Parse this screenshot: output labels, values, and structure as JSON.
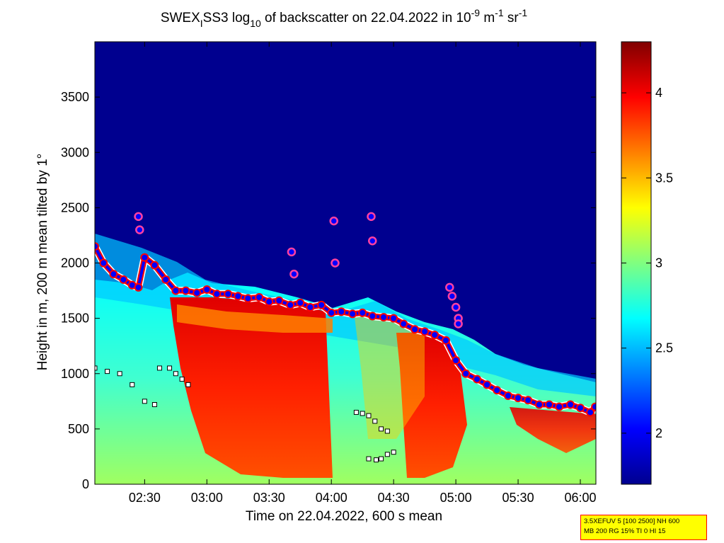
{
  "chart_data": {
    "type": "heatmap",
    "title": {
      "prefix": "SWEX",
      "sub1": "I",
      "mid": "SS3 log",
      "sub2": "10",
      "mid2": " of backscatter on 22.04.2022 in 10",
      "sup1": "-9",
      "mid3": " m",
      "sup2": "-1",
      "mid4": " sr",
      "sup3": "-1"
    },
    "xlabel": "Time on 22.04.2022, 600 s mean",
    "ylabel": "Height in m, 200 m mean tilted by 1°",
    "xlim_hours": [
      2.1,
      6.125
    ],
    "ylim": [
      0,
      4000
    ],
    "xticks": [
      {
        "v": 2.5,
        "label": "02:30"
      },
      {
        "v": 3.0,
        "label": "03:00"
      },
      {
        "v": 3.5,
        "label": "03:30"
      },
      {
        "v": 4.0,
        "label": "04:00"
      },
      {
        "v": 4.5,
        "label": "04:30"
      },
      {
        "v": 5.0,
        "label": "05:00"
      },
      {
        "v": 5.5,
        "label": "05:30"
      },
      {
        "v": 6.0,
        "label": "06:00"
      }
    ],
    "yticks": [
      {
        "v": 0,
        "label": "0"
      },
      {
        "v": 500,
        "label": "500"
      },
      {
        "v": 1000,
        "label": "1000"
      },
      {
        "v": 1500,
        "label": "1500"
      },
      {
        "v": 2000,
        "label": "2000"
      },
      {
        "v": 2500,
        "label": "2500"
      },
      {
        "v": 3000,
        "label": "3000"
      },
      {
        "v": 3500,
        "label": "3500"
      }
    ],
    "colorbar": {
      "clim": [
        1.7,
        4.3
      ],
      "ticks": [
        {
          "v": 2.0,
          "label": "2"
        },
        {
          "v": 2.5,
          "label": "2.5"
        },
        {
          "v": 3.0,
          "label": "3"
        },
        {
          "v": 3.5,
          "label": "3.5"
        },
        {
          "v": 4.0,
          "label": "4"
        }
      ]
    },
    "colors": {
      "background": "#00008f",
      "blue": "#0000ff",
      "cyan": "#00ffff",
      "green": "#80ff80",
      "yellow": "#ffff00",
      "orange": "#ff8000",
      "red": "#ff0000",
      "darkred": "#800000",
      "mlh_marker_fill": "#0000ff",
      "mlh_marker_ring": "#ff0000",
      "square_marker": "#ffffff"
    },
    "series": [
      {
        "kind": "mixing-layer-top",
        "x": [
          2.1,
          2.17,
          2.25,
          2.33,
          2.4,
          2.45,
          2.5,
          2.58,
          2.67,
          2.75,
          2.83,
          2.92,
          3.0,
          3.08,
          3.17,
          3.25,
          3.33,
          3.42,
          3.5,
          3.58,
          3.67,
          3.75,
          3.83,
          3.92,
          4.0,
          4.08,
          4.17,
          4.25,
          4.33,
          4.42,
          4.5,
          4.58,
          4.67,
          4.75,
          4.83,
          4.92,
          5.0,
          5.08,
          5.17,
          5.25,
          5.33,
          5.42,
          5.5,
          5.58,
          5.67,
          5.75,
          5.83,
          5.92,
          6.0,
          6.08,
          6.12
        ],
        "y": [
          2150,
          2000,
          1900,
          1850,
          1800,
          1780,
          2050,
          1980,
          1850,
          1750,
          1750,
          1730,
          1760,
          1720,
          1720,
          1700,
          1680,
          1690,
          1650,
          1660,
          1620,
          1640,
          1600,
          1620,
          1550,
          1560,
          1540,
          1550,
          1520,
          1510,
          1500,
          1450,
          1400,
          1380,
          1350,
          1300,
          1120,
          1000,
          950,
          900,
          850,
          800,
          780,
          760,
          720,
          720,
          700,
          720,
          690,
          650,
          700
        ]
      },
      {
        "kind": "lower-layer",
        "x": [
          2.1,
          2.2,
          2.3,
          2.4,
          2.5,
          2.58,
          2.62,
          2.7,
          2.75,
          2.8,
          2.85
        ],
        "y": [
          1050,
          1020,
          1000,
          900,
          750,
          720,
          1050,
          1050,
          1000,
          950,
          900
        ]
      },
      {
        "kind": "peaks",
        "x": [
          2.45,
          2.46,
          3.68,
          3.7,
          4.02,
          4.03,
          4.32,
          4.33,
          4.95,
          4.97,
          5.0,
          5.02,
          5.02
        ],
        "y": [
          2420,
          2300,
          2100,
          1900,
          2380,
          2000,
          2420,
          2200,
          1780,
          1700,
          1600,
          1500,
          1450
        ]
      },
      {
        "kind": "lower-aerosol",
        "x": [
          4.2,
          4.25,
          4.3,
          4.35,
          4.4,
          4.45
        ],
        "y": [
          650,
          640,
          620,
          570,
          500,
          480
        ]
      },
      {
        "kind": "low-residual",
        "x": [
          4.3,
          4.36,
          4.4,
          4.45,
          4.5
        ],
        "y": [
          230,
          220,
          230,
          270,
          290
        ]
      }
    ]
  },
  "infobox": {
    "line1": "3.5XEFUV 5 [100 2500] NH 600",
    "line2": "MB 200 RG 15% TI 0 HI 15"
  }
}
